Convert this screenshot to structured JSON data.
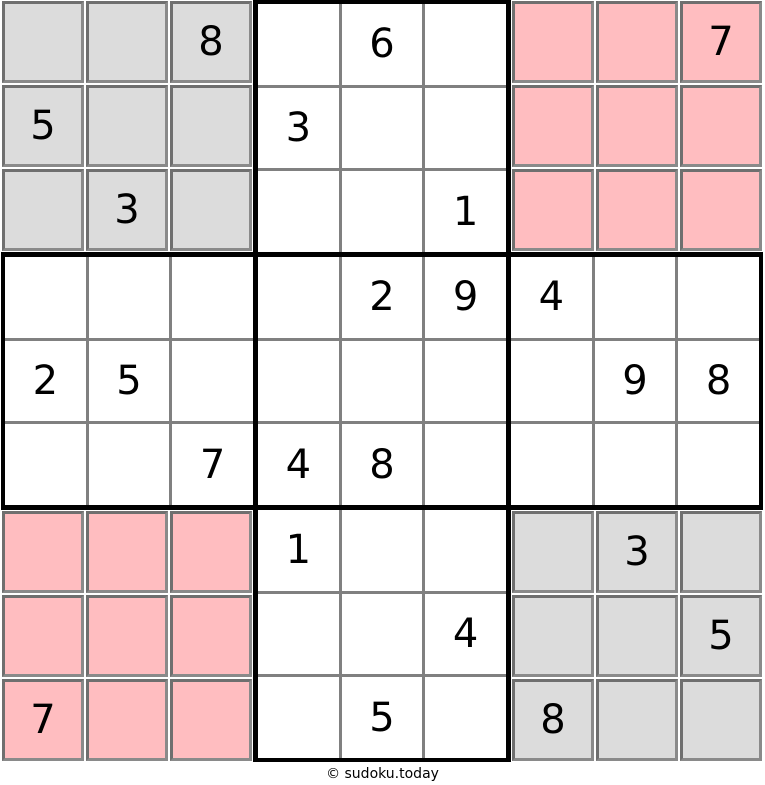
{
  "board": {
    "size": 9,
    "colors": {
      "white_cell": "#FFFFFF",
      "gray_cell": "#DCDCDC",
      "pink_cell": "#FFBDC0",
      "tile_border_dark": "#6F6F6F",
      "tile_border_light": "#8A8A8A",
      "thin_line": "#808080",
      "block_line": "#000000",
      "digit": "#000000"
    },
    "block_colors": [
      [
        "gray",
        "white",
        "pink"
      ],
      [
        "white",
        "white",
        "white"
      ],
      [
        "pink",
        "white",
        "gray"
      ]
    ],
    "grid": [
      [
        "",
        "",
        "8",
        "",
        "6",
        "",
        "",
        "",
        "7"
      ],
      [
        "5",
        "",
        "",
        "3",
        "",
        "",
        "",
        "",
        ""
      ],
      [
        "",
        "3",
        "",
        "",
        "",
        "1",
        "",
        "",
        ""
      ],
      [
        "",
        "",
        "",
        "",
        "2",
        "9",
        "4",
        "",
        ""
      ],
      [
        "2",
        "5",
        "",
        "",
        "",
        "",
        "",
        "9",
        "8"
      ],
      [
        "",
        "",
        "7",
        "4",
        "8",
        "",
        "",
        "",
        ""
      ],
      [
        "",
        "",
        "",
        "1",
        "",
        "",
        "",
        "3",
        ""
      ],
      [
        "",
        "",
        "",
        "",
        "",
        "4",
        "",
        "",
        "5"
      ],
      [
        "7",
        "",
        "",
        "",
        "5",
        "",
        "8",
        "",
        ""
      ]
    ]
  },
  "footer": {
    "credit": "© sudoku.today"
  }
}
